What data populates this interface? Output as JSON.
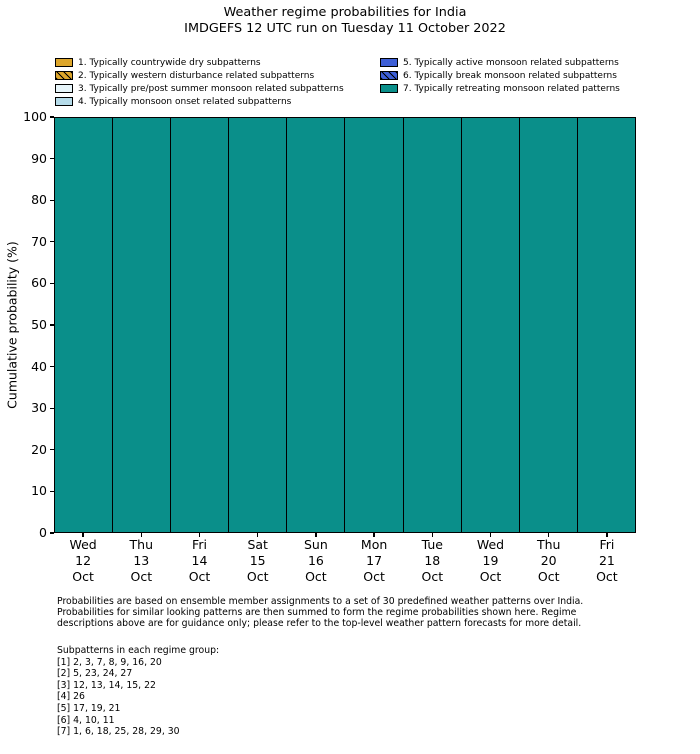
{
  "chart_data": {
    "type": "bar",
    "stacked": true,
    "title": "Weather regime probabilities for India",
    "subtitle": "IMDGEFS 12 UTC run on Tuesday 11 October 2022",
    "ylabel": "Cumulative probability (%)",
    "ylim": [
      0,
      100
    ],
    "yticks": [
      0,
      10,
      20,
      30,
      40,
      50,
      60,
      70,
      80,
      90,
      100
    ],
    "grid": false,
    "legend_position": "top",
    "bar_width": 1.0,
    "categories": [
      "Wed\n12\nOct",
      "Thu\n13\nOct",
      "Fri\n14\nOct",
      "Sat\n15\nOct",
      "Sun\n16\nOct",
      "Mon\n17\nOct",
      "Tue\n18\nOct",
      "Wed\n19\nOct",
      "Thu\n20\nOct",
      "Fri\n21\nOct"
    ],
    "series": [
      {
        "name": "1. Typically countrywide dry subpatterns",
        "color": "#dda62b",
        "hatch": false,
        "values": [
          0,
          0,
          0,
          0,
          0,
          0,
          0,
          0,
          0,
          0
        ]
      },
      {
        "name": "2. Typically western disturbance related subpatterns",
        "color": "#dda62b",
        "hatch": true,
        "values": [
          0,
          0,
          0,
          0,
          0,
          0,
          0,
          0,
          0,
          0
        ]
      },
      {
        "name": "3. Typically pre/post summer monsoon related subpatterns",
        "color": "#e7f5fa",
        "hatch": false,
        "values": [
          0,
          0,
          0,
          0,
          0,
          0,
          0,
          0,
          0,
          0
        ]
      },
      {
        "name": "4. Typically monsoon onset related subpatterns",
        "color": "#b5dbe9",
        "hatch": false,
        "values": [
          0,
          0,
          0,
          0,
          0,
          0,
          0,
          0,
          0,
          0
        ]
      },
      {
        "name": "5. Typically active monsoon related subpatterns",
        "color": "#3e5fd6",
        "hatch": false,
        "values": [
          0,
          0,
          0,
          0,
          0,
          0,
          0,
          0,
          0,
          0
        ]
      },
      {
        "name": "6. Typically break monsoon related subpatterns",
        "color": "#3e5fd6",
        "hatch": true,
        "values": [
          0,
          0,
          0,
          0,
          0,
          0,
          0,
          0,
          0,
          0
        ]
      },
      {
        "name": "7. Typically retreating monsoon related patterns",
        "color": "#0a8f8a",
        "hatch": false,
        "values": [
          100,
          100,
          100,
          100,
          100,
          100,
          100,
          100,
          100,
          100
        ]
      }
    ]
  },
  "legend": {
    "columns": [
      [
        0,
        1,
        2,
        3
      ],
      [
        4,
        5,
        6
      ]
    ]
  },
  "colors": {
    "bar_edge": "#000000",
    "regime7_teal": "#0a8f8a",
    "regime_orange": "#dda62b",
    "regime_pale_blue": "#e7f5fa",
    "regime_light_blue": "#b5dbe9",
    "regime_royal_blue": "#3e5fd6"
  },
  "footer": {
    "paragraph": [
      "Probabilities are based on ensemble member assignments to a set of 30 predefined weather patterns over India.",
      "Probabilities for similar looking patterns are then summed to form the regime probabilities shown here. Regime",
      "descriptions above are for guidance only; please refer to the top-level weather pattern forecasts for more detail."
    ],
    "subpatterns_header": "Subpatterns in each regime group:",
    "subpatterns": [
      "[1] 2, 3, 7, 8, 9, 16, 20",
      "[2] 5, 23, 24, 27",
      "[3] 12, 13, 14, 15, 22",
      "[4] 26",
      "[5] 17, 19, 21",
      "[6] 4, 10, 11",
      "[7] 1, 6, 18, 25, 28, 29, 30"
    ]
  }
}
